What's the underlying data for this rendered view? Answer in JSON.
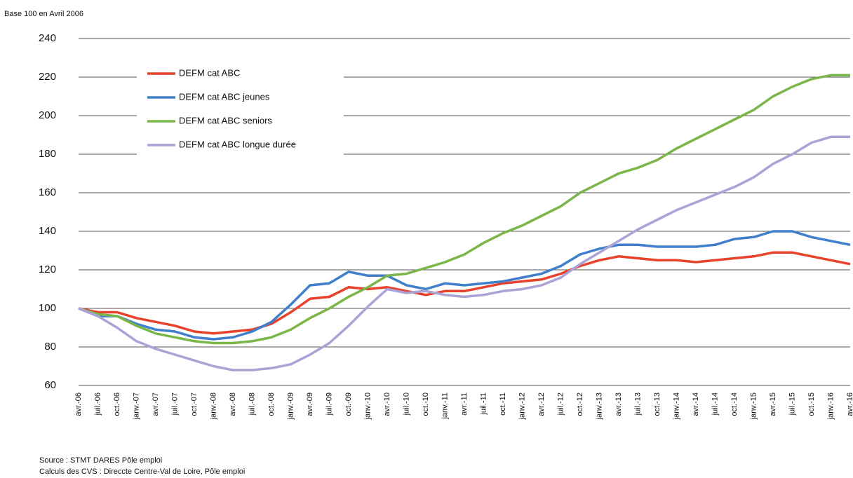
{
  "chart_data": {
    "type": "line",
    "subtitle": "Base 100 en  Avril 2006",
    "notes": [
      "Source : STMT DARES Pôle emploi",
      "Calculs des CVS : Direccte Centre-Val de Loire, Pôle emploi"
    ],
    "categories": [
      "avr.-06",
      "juil.-06",
      "oct.-06",
      "janv.-07",
      "avr.-07",
      "juil.-07",
      "oct.-07",
      "janv.-08",
      "avr.-08",
      "juil.-08",
      "oct.-08",
      "janv.-09",
      "avr.-09",
      "juil.-09",
      "oct.-09",
      "janv.-10",
      "avr.-10",
      "juil.-10",
      "oct.-10",
      "janv.-11",
      "avr.-11",
      "juil.-11",
      "oct.-11",
      "janv.-12",
      "avr.-12",
      "juil.-12",
      "oct.-12",
      "janv.-13",
      "avr.-13",
      "juil.-13",
      "oct.-13",
      "janv.-14",
      "avr.-14",
      "juil.-14",
      "oct.-14",
      "janv.-15",
      "avr.-15",
      "juil.-15",
      "oct.-15",
      "janv.-16",
      "avr.-16"
    ],
    "series": [
      {
        "name": "DEFM cat ABC",
        "color": "#e8412c",
        "values": [
          100,
          98,
          98,
          95,
          93,
          91,
          88,
          87,
          88,
          89,
          92,
          98,
          105,
          106,
          111,
          110,
          111,
          109,
          107,
          109,
          109,
          111,
          113,
          114,
          115,
          118,
          122,
          125,
          127,
          126,
          125,
          125,
          124,
          125,
          126,
          127,
          129,
          129,
          127,
          125,
          123
        ]
      },
      {
        "name": "DEFM cat ABC jeunes",
        "color": "#3f7fcc",
        "values": [
          100,
          96,
          96,
          92,
          89,
          88,
          85,
          84,
          85,
          88,
          93,
          102,
          112,
          113,
          119,
          117,
          117,
          112,
          110,
          113,
          112,
          113,
          114,
          116,
          118,
          122,
          128,
          131,
          133,
          133,
          132,
          132,
          132,
          133,
          136,
          137,
          140,
          140,
          137,
          135,
          133
        ]
      },
      {
        "name": "DEFM cat ABC seniors",
        "color": "#7ab648",
        "values": [
          100,
          97,
          96,
          91,
          87,
          85,
          83,
          82,
          82,
          83,
          85,
          89,
          95,
          100,
          106,
          111,
          117,
          118,
          121,
          124,
          128,
          134,
          139,
          143,
          148,
          153,
          160,
          165,
          170,
          173,
          177,
          183,
          188,
          193,
          198,
          203,
          210,
          215,
          219,
          221,
          221
        ]
      },
      {
        "name": "DEFM cat ABC longue durée",
        "color": "#a9a3d6",
        "values": [
          100,
          96,
          90,
          83,
          79,
          76,
          73,
          70,
          68,
          68,
          69,
          71,
          76,
          82,
          91,
          101,
          110,
          108,
          109,
          107,
          106,
          107,
          109,
          110,
          112,
          116,
          123,
          129,
          135,
          141,
          146,
          151,
          155,
          159,
          163,
          168,
          175,
          180,
          186,
          189,
          189
        ]
      }
    ],
    "ylim": [
      60,
      240
    ],
    "yticks": [
      60,
      80,
      100,
      120,
      140,
      160,
      180,
      200,
      220,
      240
    ],
    "grid": true,
    "legend": "upper left"
  }
}
